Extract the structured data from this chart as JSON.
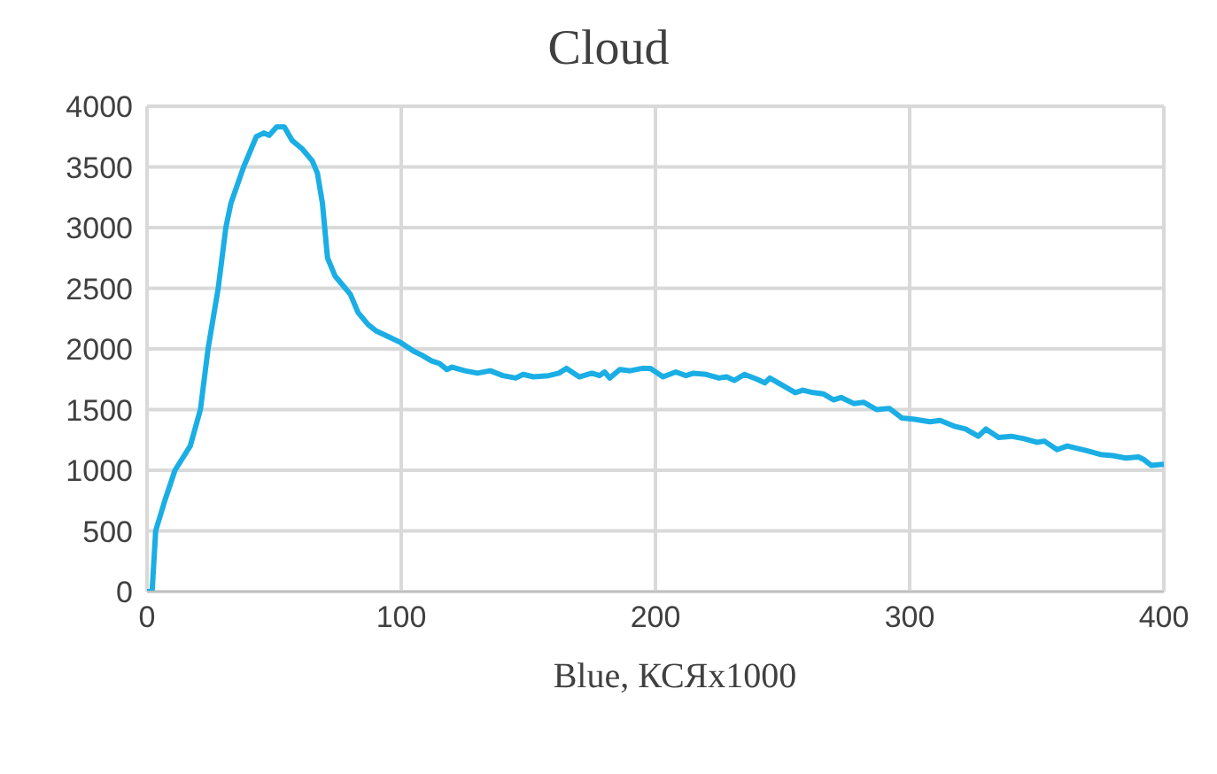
{
  "chart_data": {
    "type": "line",
    "title": "Cloud",
    "xlabel": "Blue, КСЯх1000",
    "x": [
      0,
      2,
      3.4,
      7,
      11,
      17,
      21,
      24,
      28,
      31,
      33,
      38,
      43,
      46,
      48,
      51,
      54,
      57,
      61,
      65,
      67,
      69,
      71,
      74,
      78,
      80,
      83,
      87,
      90,
      95,
      100,
      105,
      108,
      112,
      115,
      118,
      120,
      125,
      130,
      135,
      140,
      145,
      148,
      152,
      158,
      162,
      165,
      170,
      175,
      178,
      180,
      182,
      186,
      190,
      195,
      198,
      203,
      208,
      212,
      215,
      220,
      225,
      228,
      231,
      235,
      240,
      243,
      245,
      250,
      255,
      258,
      262,
      266,
      270,
      273,
      278,
      282,
      287,
      292,
      297,
      302,
      308,
      312,
      318,
      322,
      327,
      330,
      335,
      340,
      345,
      350,
      353,
      358,
      362,
      366,
      370,
      375,
      380,
      385,
      390,
      392,
      395,
      400
    ],
    "series": [
      {
        "color": "#1aaee5",
        "values": [
          0,
          0,
          500,
          750,
          1000,
          1200,
          1500,
          2000,
          2500,
          3000,
          3200,
          3500,
          3750,
          3780,
          3760,
          3830,
          3830,
          3720,
          3650,
          3550,
          3450,
          3200,
          2750,
          2600,
          2500,
          2450,
          2300,
          2200,
          2150,
          2100,
          2050,
          1980,
          1950,
          1900,
          1880,
          1830,
          1850,
          1820,
          1800,
          1820,
          1780,
          1760,
          1790,
          1770,
          1780,
          1800,
          1840,
          1770,
          1800,
          1780,
          1810,
          1760,
          1830,
          1820,
          1840,
          1840,
          1770,
          1810,
          1780,
          1800,
          1790,
          1760,
          1770,
          1740,
          1790,
          1750,
          1720,
          1760,
          1700,
          1640,
          1660,
          1640,
          1630,
          1580,
          1600,
          1550,
          1560,
          1500,
          1510,
          1430,
          1420,
          1400,
          1410,
          1360,
          1340,
          1280,
          1340,
          1270,
          1280,
          1260,
          1230,
          1240,
          1170,
          1200,
          1180,
          1160,
          1130,
          1120,
          1100,
          1110,
          1090,
          1040,
          1050
        ]
      }
    ],
    "xlim": [
      0,
      400
    ],
    "xticks": [
      0,
      100,
      200,
      300,
      400
    ],
    "ylim": [
      0,
      4000
    ],
    "yticks": [
      0,
      500,
      1000,
      1500,
      2000,
      2500,
      3000,
      3500,
      4000
    ],
    "grid": true,
    "legend": false,
    "marker": "none",
    "line_style": "solid"
  }
}
